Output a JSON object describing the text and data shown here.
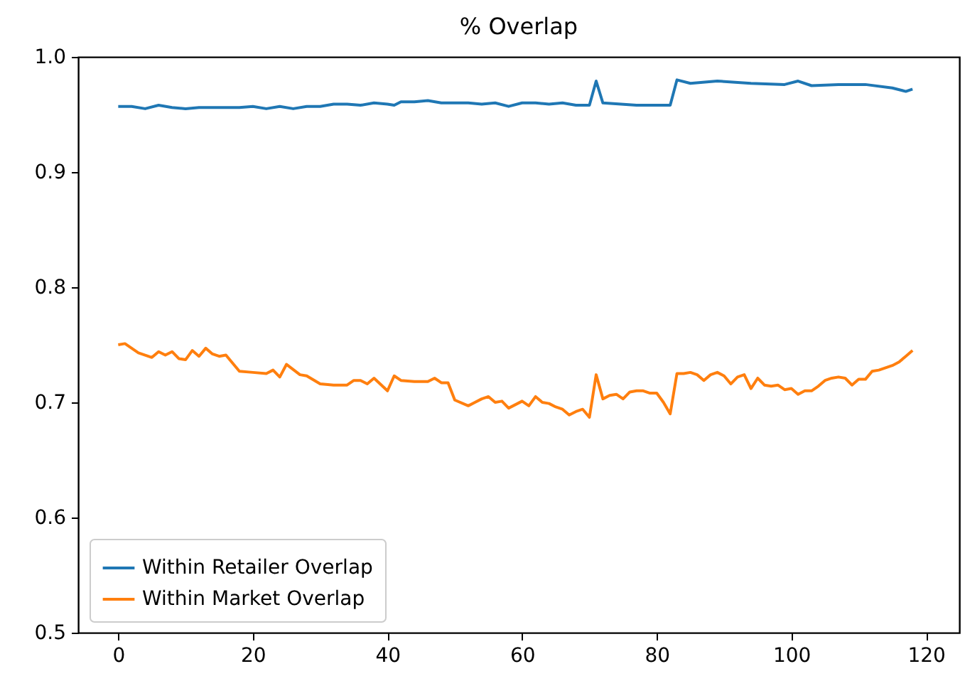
{
  "chart_data": {
    "type": "line",
    "title": "% Overlap",
    "xlim": [
      -5.95,
      124.95
    ],
    "xticks": [
      0,
      20,
      40,
      60,
      80,
      100,
      120
    ],
    "ylim": [
      0.5,
      1.0
    ],
    "yticks": [
      {
        "value": 0.5,
        "label": "0.5"
      },
      {
        "value": 0.6,
        "label": "0.6"
      },
      {
        "value": 0.7,
        "label": "0.7"
      },
      {
        "value": 0.8,
        "label": "0.8"
      },
      {
        "value": 0.9,
        "label": "0.9"
      },
      {
        "value": 1.0,
        "label": "1.0"
      }
    ],
    "grid": false,
    "legend": "bottom left",
    "marker": "none",
    "line_style": "solid",
    "series": [
      {
        "name": "Within Retailer Overlap",
        "color": "#1f77b4",
        "x": [
          0,
          2,
          4,
          6,
          8,
          10,
          12,
          14,
          16,
          18,
          20,
          22,
          24,
          26,
          28,
          30,
          32,
          34,
          36,
          38,
          40,
          41,
          42,
          44,
          46,
          48,
          50,
          52,
          54,
          56,
          58,
          60,
          62,
          64,
          66,
          68,
          70,
          71,
          72,
          77,
          82,
          83,
          85,
          89,
          94,
          99,
          101,
          103,
          107,
          111,
          115,
          117,
          118
        ],
        "values": [
          0.957,
          0.957,
          0.955,
          0.958,
          0.956,
          0.955,
          0.956,
          0.956,
          0.956,
          0.956,
          0.957,
          0.955,
          0.957,
          0.955,
          0.957,
          0.957,
          0.959,
          0.959,
          0.958,
          0.96,
          0.959,
          0.958,
          0.961,
          0.961,
          0.962,
          0.96,
          0.96,
          0.96,
          0.959,
          0.96,
          0.957,
          0.96,
          0.96,
          0.959,
          0.96,
          0.958,
          0.958,
          0.979,
          0.96,
          0.958,
          0.958,
          0.98,
          0.977,
          0.979,
          0.977,
          0.976,
          0.979,
          0.975,
          0.976,
          0.976,
          0.973,
          0.97,
          0.972
        ]
      },
      {
        "name": "Within Market Overlap",
        "color": "#ff7f0e",
        "x": [
          0,
          1,
          3,
          5,
          6,
          7,
          8,
          9,
          10,
          11,
          12,
          13,
          14,
          15,
          16,
          18,
          20,
          22,
          23,
          24,
          25,
          27,
          28,
          30,
          32,
          34,
          35,
          36,
          37,
          38,
          40,
          41,
          42,
          44,
          46,
          47,
          48,
          49,
          50,
          52,
          53,
          54,
          55,
          56,
          57,
          58,
          60,
          61,
          62,
          63,
          64,
          65,
          66,
          67,
          68,
          69,
          70,
          71,
          72,
          73,
          74,
          75,
          76,
          77,
          78,
          79,
          80,
          81,
          82,
          83,
          84,
          85,
          86,
          87,
          88,
          89,
          90,
          91,
          92,
          93,
          94,
          95,
          96,
          97,
          98,
          99,
          100,
          101,
          102,
          103,
          104,
          105,
          106,
          107,
          108,
          109,
          110,
          111,
          112,
          113,
          114,
          115,
          116,
          117,
          118
        ],
        "values": [
          0.75,
          0.751,
          0.743,
          0.739,
          0.744,
          0.741,
          0.744,
          0.738,
          0.737,
          0.745,
          0.74,
          0.747,
          0.742,
          0.74,
          0.741,
          0.727,
          0.726,
          0.725,
          0.728,
          0.722,
          0.733,
          0.724,
          0.723,
          0.716,
          0.715,
          0.715,
          0.719,
          0.719,
          0.716,
          0.721,
          0.71,
          0.723,
          0.719,
          0.718,
          0.718,
          0.721,
          0.717,
          0.717,
          0.702,
          0.697,
          0.7,
          0.703,
          0.705,
          0.7,
          0.701,
          0.695,
          0.701,
          0.697,
          0.705,
          0.7,
          0.699,
          0.696,
          0.694,
          0.689,
          0.692,
          0.694,
          0.687,
          0.724,
          0.703,
          0.706,
          0.707,
          0.703,
          0.709,
          0.71,
          0.71,
          0.708,
          0.708,
          0.7,
          0.69,
          0.725,
          0.725,
          0.726,
          0.724,
          0.719,
          0.724,
          0.726,
          0.723,
          0.716,
          0.722,
          0.724,
          0.712,
          0.721,
          0.715,
          0.714,
          0.715,
          0.711,
          0.712,
          0.707,
          0.71,
          0.71,
          0.714,
          0.719,
          0.721,
          0.722,
          0.721,
          0.715,
          0.72,
          0.72,
          0.727,
          0.728,
          0.73,
          0.732,
          0.735,
          0.74,
          0.745
        ]
      }
    ]
  }
}
